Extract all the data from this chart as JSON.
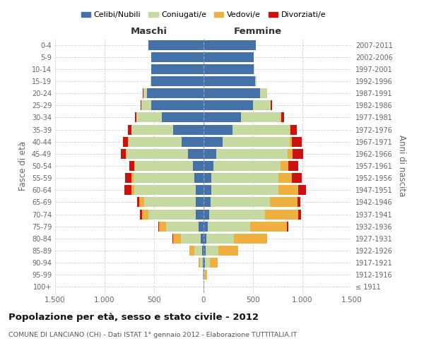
{
  "age_groups": [
    "100+",
    "95-99",
    "90-94",
    "85-89",
    "80-84",
    "75-79",
    "70-74",
    "65-69",
    "60-64",
    "55-59",
    "50-54",
    "45-49",
    "40-44",
    "35-39",
    "30-34",
    "25-29",
    "20-24",
    "15-19",
    "10-14",
    "5-9",
    "0-4"
  ],
  "birth_years": [
    "≤ 1911",
    "1912-1916",
    "1917-1921",
    "1922-1926",
    "1927-1931",
    "1932-1936",
    "1937-1941",
    "1942-1946",
    "1947-1951",
    "1952-1956",
    "1957-1961",
    "1962-1966",
    "1967-1971",
    "1972-1976",
    "1977-1981",
    "1982-1986",
    "1987-1991",
    "1992-1996",
    "1997-2001",
    "2002-2006",
    "2007-2011"
  ],
  "maschi": {
    "celibe": [
      2,
      3,
      6,
      15,
      30,
      50,
      80,
      80,
      80,
      90,
      110,
      160,
      220,
      310,
      420,
      530,
      570,
      530,
      530,
      530,
      560
    ],
    "coniugato": [
      1,
      5,
      30,
      80,
      200,
      330,
      480,
      520,
      620,
      620,
      580,
      620,
      540,
      420,
      260,
      100,
      40,
      5,
      0,
      0,
      0
    ],
    "vedovo": [
      0,
      2,
      15,
      50,
      80,
      70,
      60,
      50,
      30,
      20,
      10,
      5,
      3,
      2,
      1,
      0,
      0,
      0,
      0,
      0,
      0
    ],
    "divorziato": [
      0,
      0,
      0,
      0,
      5,
      10,
      20,
      20,
      70,
      60,
      50,
      50,
      50,
      30,
      15,
      5,
      2,
      0,
      0,
      0,
      0
    ]
  },
  "femmine": {
    "nubile": [
      2,
      5,
      12,
      20,
      30,
      40,
      60,
      70,
      75,
      80,
      100,
      130,
      190,
      290,
      380,
      500,
      570,
      520,
      510,
      510,
      530
    ],
    "coniugata": [
      1,
      8,
      50,
      130,
      280,
      430,
      560,
      600,
      680,
      680,
      680,
      720,
      680,
      580,
      400,
      180,
      70,
      15,
      2,
      0,
      0
    ],
    "vedova": [
      3,
      20,
      80,
      200,
      330,
      370,
      340,
      280,
      200,
      130,
      80,
      50,
      25,
      10,
      5,
      2,
      0,
      0,
      0,
      0,
      0
    ],
    "divorziata": [
      0,
      0,
      0,
      3,
      5,
      15,
      25,
      25,
      80,
      100,
      100,
      110,
      100,
      60,
      30,
      10,
      3,
      1,
      0,
      0,
      0
    ]
  },
  "colors": {
    "celibe": "#4472a8",
    "coniugato": "#c5d9a0",
    "vedovo": "#f0b040",
    "divorziato": "#cc1111"
  },
  "title": "Popolazione per età, sesso e stato civile - 2012",
  "subtitle": "COMUNE DI LANCIANO (CH) - Dati ISTAT 1° gennaio 2012 - Elaborazione TUTTITALIA.IT",
  "ylabel_left": "Fasce di età",
  "ylabel_right": "Anni di nascita",
  "maschi_label": "Maschi",
  "femmine_label": "Femmine",
  "xlim": 1500,
  "background_color": "#ffffff",
  "grid_color": "#cccccc",
  "legend_labels": [
    "Celibi/Nubili",
    "Coniugati/e",
    "Vedovi/e",
    "Divorziati/e"
  ]
}
